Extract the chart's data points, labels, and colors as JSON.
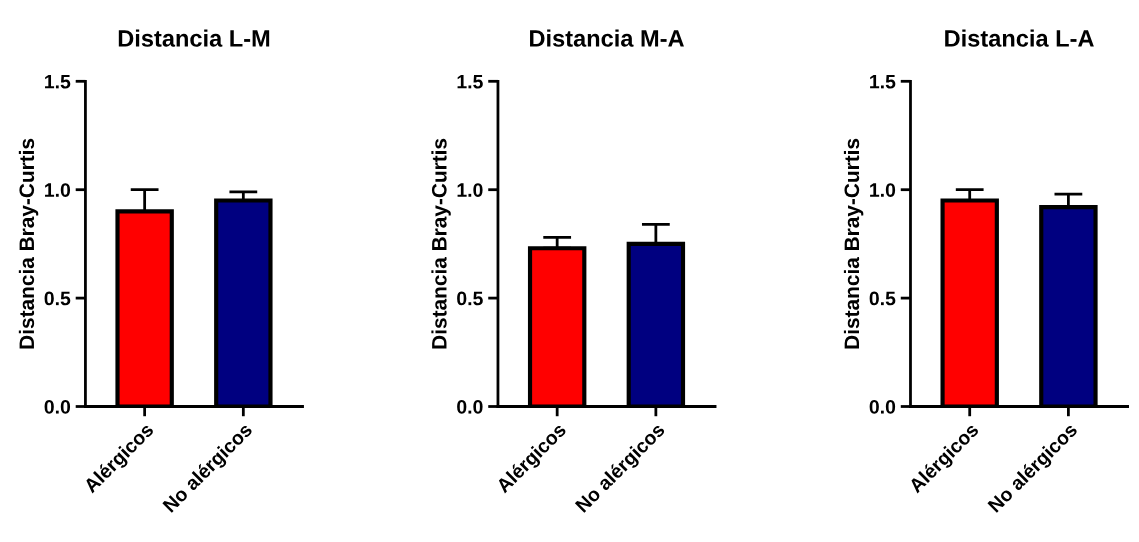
{
  "chart_data": [
    {
      "type": "bar",
      "title": "Distancia L-M",
      "ylabel": "Distancia Bray-Curtis",
      "categories": [
        "Alérgicos",
        "No alérgicos"
      ],
      "values": [
        0.9,
        0.95
      ],
      "colors": [
        "#ff0000",
        "#000080"
      ],
      "errors": [
        [
          0.9,
          1.0
        ],
        [
          0.95,
          0.99
        ]
      ],
      "ylim": [
        0,
        1.5
      ],
      "yticks": [
        {
          "value": 0,
          "label": "0.0"
        },
        {
          "value": 0.5,
          "label": "0.5"
        },
        {
          "value": 1,
          "label": "1.0"
        },
        {
          "value": 1.5,
          "label": "1.5"
        }
      ],
      "grid": false,
      "legend": false
    },
    {
      "type": "bar",
      "title": "Distancia M-A",
      "ylabel": "Distancia Bray-Curtis",
      "categories": [
        "Alérgicos",
        "No alérgicos"
      ],
      "values": [
        0.73,
        0.75
      ],
      "colors": [
        "#ff0000",
        "#000080"
      ],
      "errors": [
        [
          0.73,
          0.78
        ],
        [
          0.75,
          0.84
        ]
      ],
      "ylim": [
        0,
        1.5
      ],
      "yticks": [
        {
          "value": 0,
          "label": "0.0"
        },
        {
          "value": 0.5,
          "label": "0.5"
        },
        {
          "value": 1,
          "label": "1.0"
        },
        {
          "value": 1.5,
          "label": "1.5"
        }
      ],
      "grid": false,
      "legend": false
    },
    {
      "type": "bar",
      "title": "Distancia L-A",
      "ylabel": "Distancia Bray-Curtis",
      "categories": [
        "Alérgicos",
        "No alérgicos"
      ],
      "values": [
        0.95,
        0.92
      ],
      "colors": [
        "#ff0000",
        "#000080"
      ],
      "errors": [
        [
          0.95,
          1.0
        ],
        [
          0.92,
          0.98
        ]
      ],
      "ylim": [
        0,
        1.5
      ],
      "yticks": [
        {
          "value": 0,
          "label": "0.0"
        },
        {
          "value": 0.5,
          "label": "0.5"
        },
        {
          "value": 1,
          "label": "1.0"
        },
        {
          "value": 1.5,
          "label": "1.5"
        }
      ],
      "grid": false,
      "legend": false
    }
  ]
}
